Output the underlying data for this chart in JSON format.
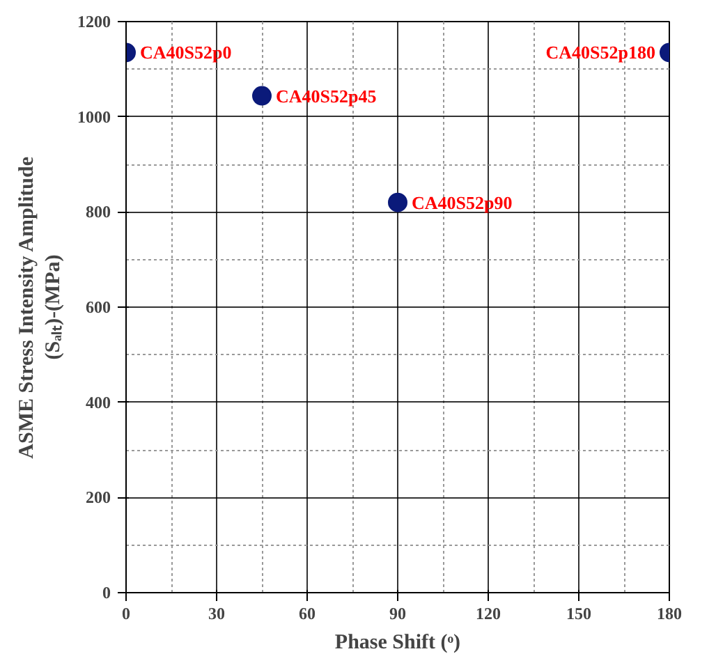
{
  "chart_data": {
    "type": "scatter",
    "xlabel": "Phase Shift (ᵒ)",
    "ylabel": "ASME Stress Intensity Amplitude\n(Sₐₗₜ)-(MPa)",
    "x": [
      0,
      45,
      90,
      180
    ],
    "series": [
      {
        "color": "#0b1a7a",
        "values": [
          1135,
          1044,
          820,
          1135
        ]
      }
    ],
    "marker": "circle",
    "grid": true,
    "xlim": [
      0,
      180
    ],
    "xticks": [
      0,
      30,
      60,
      90,
      120,
      150,
      180
    ],
    "ylim": [
      0,
      1200
    ],
    "yticks": [
      0,
      200,
      400,
      600,
      800,
      1000,
      1200
    ],
    "annotations": [
      {
        "text": "CA40S52p0",
        "x": 0,
        "y": 1135
      },
      {
        "text": "CA40S52p45",
        "x": 45,
        "y": 1044
      },
      {
        "text": "CA40S52p90",
        "x": 90,
        "y": 820
      },
      {
        "text": "CA40S52p180",
        "x": 180,
        "y": 1135
      }
    ]
  }
}
